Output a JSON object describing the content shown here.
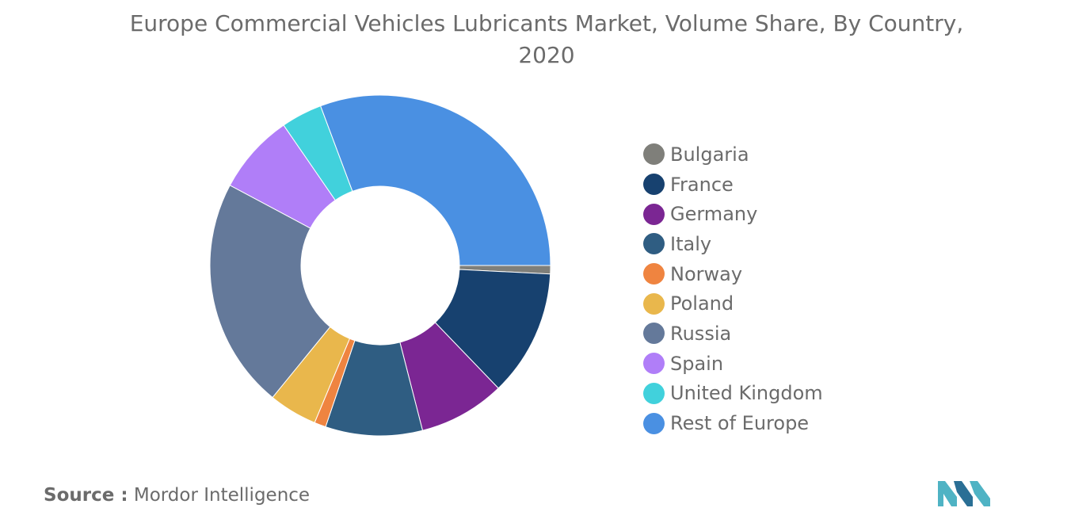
{
  "chart_data": {
    "type": "pie",
    "title": "Europe Commercial Vehicles Lubricants Market, Volume Share, By Country, 2020",
    "categories": [
      "Bulgaria",
      "France",
      "Germany",
      "Italy",
      "Norway",
      "Poland",
      "Russia",
      "Spain",
      "United Kingdom",
      "Rest of Europe"
    ],
    "values": [
      0.8,
      12.0,
      8.2,
      9.2,
      1.1,
      4.6,
      21.9,
      7.6,
      3.9,
      30.7
    ],
    "colors": [
      "#7f7f7a",
      "#17416f",
      "#7b2693",
      "#2f5d82",
      "#ef8440",
      "#e9b74c",
      "#64799a",
      "#b07ef8",
      "#41d1dc",
      "#4a90e2"
    ],
    "legend": "right",
    "donut": true
  },
  "footer": {
    "source_label": "Source :",
    "source_text": "Mordor Intelligence",
    "logo_colors": [
      "#4fb3c4",
      "#2a6f95"
    ]
  }
}
